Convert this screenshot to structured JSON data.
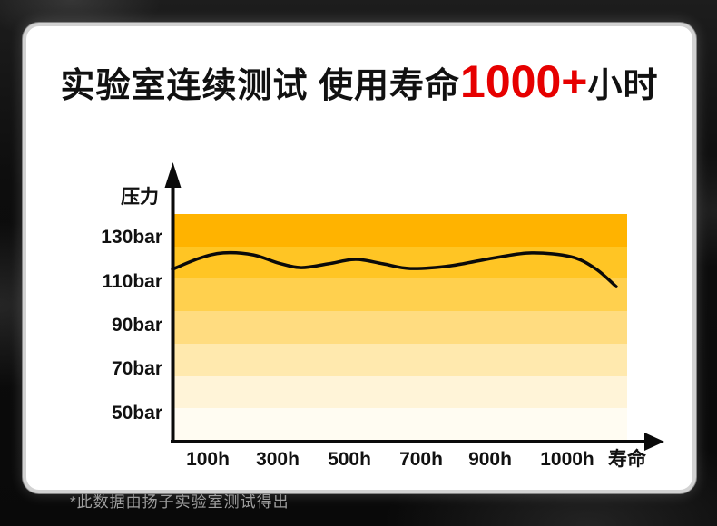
{
  "title": {
    "prefix": "实验室连续测试 使用寿命",
    "highlight": "1000+",
    "suffix": "小时",
    "highlight_color": "#e60000"
  },
  "footnote": "*此数据由扬子实验室测试得出",
  "chart_data": {
    "type": "line",
    "title": "实验室连续测试 使用寿命1000+小时",
    "xlabel": "寿命",
    "ylabel": "压力",
    "y_unit": "bar",
    "y_tick_labels": [
      "130bar",
      "110bar",
      "90bar",
      "70bar",
      "50bar"
    ],
    "x_tick_labels": [
      "100h",
      "300h",
      "500h",
      "700h",
      "900h",
      "1000h",
      "寿命"
    ],
    "grid": false,
    "legend": "none",
    "background_band_colors_top_to_bottom": [
      "#ffb300",
      "#ffc524",
      "#ffd04e",
      "#ffdc80",
      "#ffe9ae",
      "#fff4d8",
      "#fffcf2"
    ],
    "line_color": "#0a0a0a",
    "series": [
      {
        "name": "压力 (bar)",
        "x_frac": [
          0,
          0.058,
          0.112,
          0.178,
          0.232,
          0.283,
          0.343,
          0.403,
          0.463,
          0.523,
          0.611,
          0.711,
          0.79,
          0.876,
          0.93,
          0.976
        ],
        "bar": [
          115.7,
          120.6,
          123.1,
          122.2,
          118.6,
          116.5,
          118.2,
          120.2,
          118.2,
          116.1,
          117.3,
          121.0,
          123.1,
          121.4,
          116.1,
          107.9
        ]
      }
    ]
  }
}
